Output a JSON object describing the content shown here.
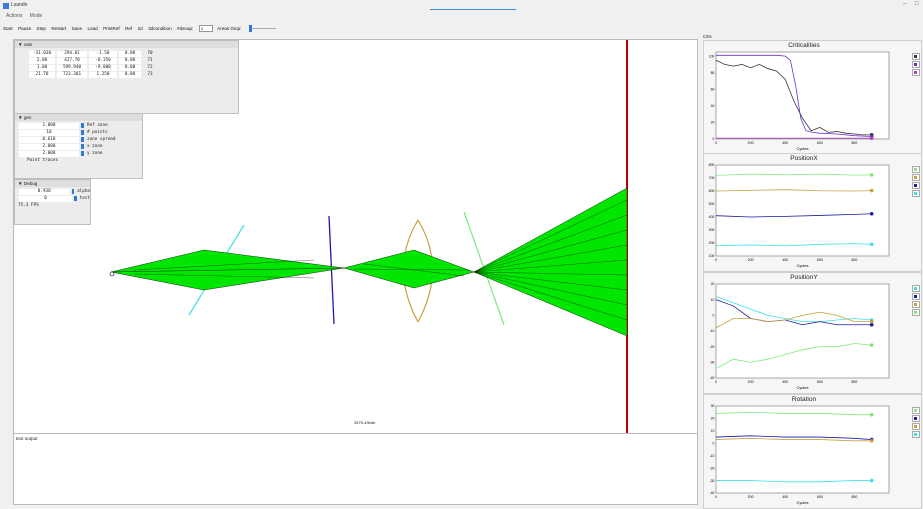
{
  "app": {
    "title": "Lsandn",
    "window_controls": [
      "–",
      "□"
    ]
  },
  "menu": [
    "Actions",
    "Mode"
  ],
  "toolbar": {
    "buttons": [
      "Start",
      "Pause",
      "Step",
      "Restart",
      "Save",
      "Load",
      "PrintRef",
      "Ref",
      "2d",
      "3dcondition"
    ],
    "aplocap_label": "#dsnap:",
    "aplocap_value": "3",
    "areas_label": "Areas Oiop:"
  },
  "vals_panel": {
    "title": "▼ vals",
    "rows": [
      [
        "-31.030",
        "294.01",
        "-1.50",
        "0.00",
        "70"
      ],
      [
        "2.00",
        "427.70",
        "-0.350",
        "0.00",
        "71"
      ],
      [
        "1.00",
        "599.940",
        "-9.000",
        "0.00",
        "72"
      ],
      [
        "21.70",
        "723.301",
        "1.250",
        "0.00",
        "73"
      ]
    ]
  },
  "gen_panel": {
    "title": "▼ gen",
    "rows": [
      {
        "value": "1.000",
        "label": "Ref zone"
      },
      {
        "value": "10",
        "label": "# points"
      },
      {
        "value": "0.610",
        "label": "zone spread"
      },
      {
        "value": "2.000",
        "label": "x zone"
      },
      {
        "value": "2.000",
        "label": "y zone"
      }
    ],
    "checkbox_label": "Point traces"
  },
  "debug_panel": {
    "title": "▼ Debug",
    "rows": [
      {
        "value": "0.930",
        "label": "alpha"
      },
      {
        "value": "0",
        "label": "test"
      }
    ],
    "fps": "75.3 FPS"
  },
  "canvas": {
    "center_label": "3575-49bdb"
  },
  "output": {
    "label": "text output"
  },
  "charts_section_label": "Crits",
  "colors": {
    "green": "#00e600",
    "cyan": "#40e0e8",
    "navy": "#1a1aa8",
    "gold": "#c8a040",
    "red": "#c00000",
    "lightgreen": "#80e880",
    "purple": "#6a2fd0",
    "violet": "#b040c0"
  },
  "chart_data": [
    {
      "type": "line",
      "title": "Criticalities",
      "xlabel": "Cycles",
      "xlim": [
        0,
        1000
      ],
      "ylim": [
        0,
        105
      ],
      "xticks": [
        "0",
        "200",
        "400",
        "600",
        "800"
      ],
      "yticks": [
        "0",
        "20",
        "40",
        "60",
        "80",
        "100"
      ],
      "series": [
        {
          "color": "#333333",
          "x": [
            0,
            50,
            100,
            150,
            200,
            250,
            300,
            350,
            400,
            450,
            500,
            550,
            600,
            650,
            700,
            750,
            800,
            850,
            900
          ],
          "y": [
            95,
            90,
            88,
            90,
            86,
            90,
            85,
            82,
            72,
            46,
            25,
            10,
            14,
            8,
            9,
            7,
            6,
            5,
            5
          ]
        },
        {
          "color": "#6a2fd0",
          "x": [
            0,
            100,
            200,
            300,
            350,
            400,
            430,
            460,
            490,
            520,
            560,
            600,
            700,
            800,
            900
          ],
          "y": [
            101,
            101,
            101,
            101,
            101,
            100,
            95,
            65,
            25,
            10,
            8,
            7,
            6,
            4,
            3
          ]
        },
        {
          "color": "#b040c0",
          "x": [
            0,
            200,
            400,
            600,
            800,
            900
          ],
          "y": [
            1,
            1,
            1,
            1,
            1,
            1
          ]
        }
      ]
    },
    {
      "type": "line",
      "title": "PositionX",
      "xlabel": "Cycles",
      "xlim": [
        0,
        1000
      ],
      "ylim": [
        100,
        800
      ],
      "xticks": [
        "0",
        "200",
        "400",
        "600",
        "800"
      ],
      "yticks": [
        "100",
        "200",
        "300",
        "400",
        "500",
        "600",
        "700",
        "800"
      ],
      "series": [
        {
          "color": "#80e880",
          "x": [
            0,
            200,
            400,
            600,
            800,
            900
          ],
          "y": [
            720,
            730,
            725,
            730,
            722,
            724
          ]
        },
        {
          "color": "#c8a040",
          "x": [
            0,
            200,
            400,
            600,
            800,
            900
          ],
          "y": [
            600,
            605,
            610,
            602,
            600,
            603
          ]
        },
        {
          "color": "#1a1aa8",
          "x": [
            0,
            200,
            400,
            600,
            800,
            900
          ],
          "y": [
            410,
            400,
            405,
            412,
            420,
            425
          ]
        },
        {
          "color": "#40e0e8",
          "x": [
            0,
            200,
            400,
            600,
            800,
            900
          ],
          "y": [
            180,
            185,
            178,
            190,
            195,
            190
          ]
        }
      ]
    },
    {
      "type": "line",
      "title": "PositionY",
      "xlabel": "Cycles",
      "xlim": [
        0,
        1000
      ],
      "ylim": [
        -40,
        20
      ],
      "xticks": [
        "0",
        "200",
        "400",
        "600",
        "800"
      ],
      "yticks": [
        "-40",
        "-30",
        "-20",
        "-10",
        "0",
        "10",
        "20"
      ],
      "series": [
        {
          "color": "#40e0e8",
          "x": [
            0,
            100,
            200,
            300,
            400,
            500,
            600,
            700,
            800,
            900
          ],
          "y": [
            12,
            8,
            4,
            0,
            -2,
            -4,
            -4,
            -3,
            -2,
            -3
          ]
        },
        {
          "color": "#1a1aa8",
          "x": [
            0,
            100,
            200,
            300,
            400,
            500,
            600,
            700,
            800,
            900
          ],
          "y": [
            10,
            6,
            -2,
            -4,
            -3,
            -6,
            -4,
            -6,
            -6,
            -6
          ]
        },
        {
          "color": "#c8a040",
          "x": [
            0,
            100,
            200,
            300,
            400,
            500,
            600,
            700,
            800,
            900
          ],
          "y": [
            -8,
            -2,
            -2,
            -4,
            -3,
            0,
            2,
            0,
            -4,
            -4
          ]
        },
        {
          "color": "#80e880",
          "x": [
            0,
            100,
            200,
            300,
            400,
            500,
            600,
            700,
            800,
            900
          ],
          "y": [
            -34,
            -28,
            -30,
            -28,
            -25,
            -22,
            -20,
            -20,
            -18,
            -19
          ]
        }
      ]
    },
    {
      "type": "line",
      "title": "Rotation",
      "xlabel": "Cycles",
      "xlim": [
        0,
        1000
      ],
      "ylim": [
        -40,
        30
      ],
      "xticks": [
        "0",
        "200",
        "400",
        "600",
        "800"
      ],
      "yticks": [
        "-40",
        "-30",
        "-20",
        "-10",
        "0",
        "10",
        "20",
        "30"
      ],
      "series": [
        {
          "color": "#80e880",
          "x": [
            0,
            200,
            400,
            600,
            800,
            900
          ],
          "y": [
            24,
            25,
            24,
            24,
            23,
            23
          ]
        },
        {
          "color": "#1a1aa8",
          "x": [
            0,
            200,
            400,
            600,
            800,
            900
          ],
          "y": [
            5,
            6,
            5,
            5,
            4,
            3
          ]
        },
        {
          "color": "#c8a040",
          "x": [
            0,
            200,
            400,
            600,
            800,
            900
          ],
          "y": [
            3,
            4,
            3,
            3,
            2,
            2
          ]
        },
        {
          "color": "#40e0e8",
          "x": [
            0,
            200,
            400,
            600,
            800,
            900
          ],
          "y": [
            -30,
            -30,
            -31,
            -31,
            -30,
            -30
          ]
        }
      ]
    }
  ]
}
